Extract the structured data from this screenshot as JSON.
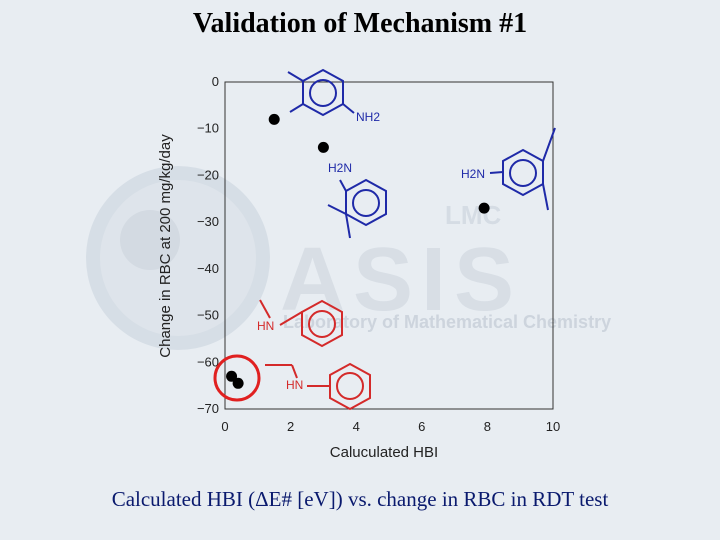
{
  "slide": {
    "title": "Validation of Mechanism #1",
    "caption": "Calculated HBI (ΔE# [eV]) vs. change in RBC in RDT test"
  },
  "watermark": {
    "logo_text": "LMC",
    "big_text": "ASIS",
    "sub_text": "Laboratory of Mathematical Chemistry"
  },
  "chart_data": {
    "type": "scatter",
    "title": "",
    "xlabel": "Caluculated HBI",
    "ylabel": "Change in RBC at 200 mg/kg/day",
    "xlim": [
      0,
      10
    ],
    "ylim": [
      -70,
      0
    ],
    "xticks": [
      0,
      2,
      4,
      6,
      8,
      10
    ],
    "yticks": [
      0,
      -10,
      -20,
      -30,
      -40,
      -50,
      -60,
      -70
    ],
    "grid": false,
    "points": [
      {
        "x": 1.5,
        "y": -8
      },
      {
        "x": 3.0,
        "y": -14
      },
      {
        "x": 7.9,
        "y": -27
      },
      {
        "x": 0.2,
        "y": -63
      },
      {
        "x": 0.4,
        "y": -64.5
      }
    ],
    "annotations": {
      "highlight_circle_color": "#e02020",
      "structure_labels": [
        "NH2",
        "H2N",
        "H2N",
        "HN",
        "HN"
      ],
      "structure_colors": {
        "primary_amines": "#1f2aa8",
        "secondary_amines": "#d42a2a"
      }
    }
  }
}
